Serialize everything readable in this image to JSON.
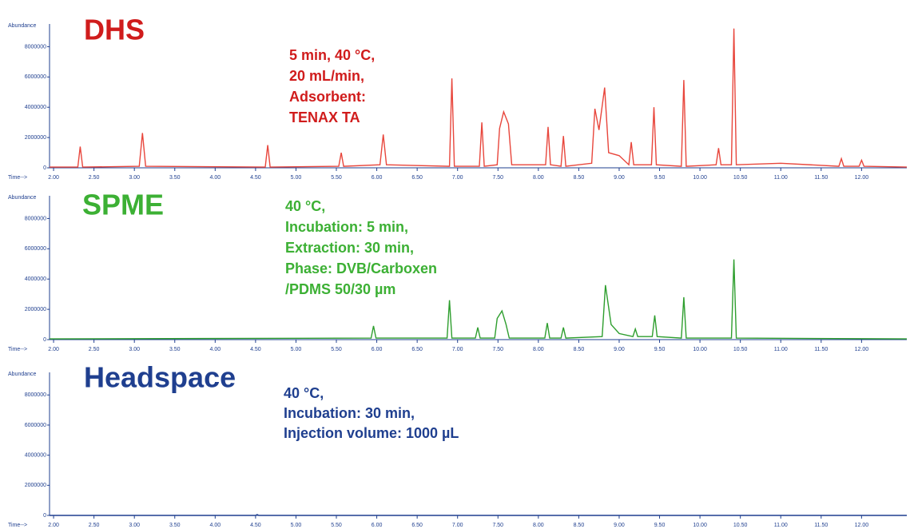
{
  "chart_data": [
    {
      "type": "line",
      "title": "DHS",
      "annotations": [
        "5 min, 40 °C,",
        "20 mL/min,",
        "Adsorbent:",
        "TENAX TA"
      ],
      "y_label": "Abundance",
      "x_label": "Time-->",
      "color": "#e8463c",
      "text_color": "#d01c1c",
      "xlim": [
        1.95,
        12.56
      ],
      "ylim": [
        0,
        9500000
      ],
      "yticks": [
        0,
        2000000,
        4000000,
        6000000,
        8000000
      ],
      "xticks": [
        {
          "value": 2,
          "label": "2.00"
        },
        {
          "value": 2.5,
          "label": "2.50"
        },
        {
          "value": 3,
          "label": "3.00"
        },
        {
          "value": 3.5,
          "label": "3.50"
        },
        {
          "value": 4,
          "label": "4.00"
        },
        {
          "value": 4.5,
          "label": "4.50"
        },
        {
          "value": 5,
          "label": "5.00"
        },
        {
          "value": 5.5,
          "label": "5.50"
        },
        {
          "value": 6,
          "label": "6.00"
        },
        {
          "value": 6.5,
          "label": "6.50"
        },
        {
          "value": 7,
          "label": "7.00"
        },
        {
          "value": 7.5,
          "label": "7.50"
        },
        {
          "value": 8,
          "label": "8.00"
        },
        {
          "value": 8.5,
          "label": "8.50"
        },
        {
          "value": 9,
          "label": "9.00"
        },
        {
          "value": 9.5,
          "label": "9.50"
        },
        {
          "value": 10,
          "label": "10.00"
        },
        {
          "value": 10.5,
          "label": "10.50"
        },
        {
          "value": 11,
          "label": "11.00"
        },
        {
          "value": 11.5,
          "label": "11.50"
        },
        {
          "value": 12,
          "label": "12.00"
        }
      ],
      "x": [
        1.95,
        2.3,
        2.33,
        2.36,
        3.06,
        3.1,
        3.14,
        4.62,
        4.65,
        4.68,
        5.53,
        5.56,
        5.59,
        6.04,
        6.08,
        6.12,
        6.9,
        6.93,
        6.96,
        7.27,
        7.3,
        7.33,
        7.49,
        7.52,
        7.57,
        7.63,
        7.67,
        8.09,
        8.12,
        8.15,
        8.28,
        8.31,
        8.34,
        8.66,
        8.7,
        8.75,
        8.82,
        8.87,
        9.0,
        9.12,
        9.15,
        9.18,
        9.4,
        9.43,
        9.46,
        9.77,
        9.8,
        9.83,
        10.2,
        10.23,
        10.26,
        10.39,
        10.42,
        10.45,
        11.0,
        11.72,
        11.75,
        11.78,
        11.97,
        12.0,
        12.03,
        12.56
      ],
      "values": [
        50000,
        50000,
        1400000,
        50000,
        100000,
        2300000,
        100000,
        50000,
        1500000,
        50000,
        100000,
        1000000,
        100000,
        200000,
        2200000,
        200000,
        100000,
        5900000,
        100000,
        100000,
        3000000,
        100000,
        200000,
        2600000,
        3700000,
        2900000,
        200000,
        200000,
        2700000,
        200000,
        100000,
        2100000,
        100000,
        300000,
        3900000,
        2500000,
        5300000,
        1000000,
        800000,
        200000,
        1700000,
        200000,
        200000,
        4000000,
        200000,
        100000,
        5800000,
        100000,
        200000,
        1300000,
        200000,
        200000,
        9200000,
        200000,
        300000,
        100000,
        600000,
        100000,
        100000,
        500000,
        100000,
        50000
      ]
    },
    {
      "type": "line",
      "title": "SPME",
      "annotations": [
        "40 °C,",
        "Incubation: 5 min,",
        "Extraction: 30 min,",
        "Phase: DVB/Carboxen",
        "/PDMS 50/30 µm"
      ],
      "y_label": "Abundance",
      "x_label": "Time-->",
      "color": "#2e9e2e",
      "text_color": "#3cb034",
      "xlim": [
        1.95,
        12.56
      ],
      "ylim": [
        0,
        9500000
      ],
      "yticks": [
        0,
        2000000,
        4000000,
        6000000,
        8000000
      ],
      "xticks": [
        {
          "value": 2,
          "label": "2.00"
        },
        {
          "value": 2.5,
          "label": "2.50"
        },
        {
          "value": 3,
          "label": "3.00"
        },
        {
          "value": 3.5,
          "label": "3.50"
        },
        {
          "value": 4,
          "label": "4.00"
        },
        {
          "value": 4.5,
          "label": "4.50"
        },
        {
          "value": 5,
          "label": "5.00"
        },
        {
          "value": 5.5,
          "label": "5.50"
        },
        {
          "value": 6,
          "label": "6.00"
        },
        {
          "value": 6.5,
          "label": "6.50"
        },
        {
          "value": 7,
          "label": "7.00"
        },
        {
          "value": 7.5,
          "label": "7.50"
        },
        {
          "value": 8,
          "label": "8.00"
        },
        {
          "value": 8.5,
          "label": "8.50"
        },
        {
          "value": 9,
          "label": "9.00"
        },
        {
          "value": 9.5,
          "label": "9.50"
        },
        {
          "value": 10,
          "label": "10.00"
        },
        {
          "value": 10.5,
          "label": "10.50"
        },
        {
          "value": 11,
          "label": "11.00"
        },
        {
          "value": 11.5,
          "label": "11.50"
        },
        {
          "value": 12,
          "label": "12.00"
        }
      ],
      "x": [
        1.95,
        5.93,
        5.96,
        5.99,
        6.87,
        6.9,
        6.93,
        7.22,
        7.25,
        7.28,
        7.46,
        7.49,
        7.55,
        7.6,
        7.64,
        8.08,
        8.11,
        8.14,
        8.28,
        8.31,
        8.34,
        8.79,
        8.83,
        8.9,
        9.0,
        9.17,
        9.2,
        9.23,
        9.41,
        9.44,
        9.47,
        9.77,
        9.8,
        9.83,
        10.39,
        10.42,
        10.45,
        12.56
      ],
      "values": [
        50000,
        100000,
        900000,
        100000,
        100000,
        2600000,
        100000,
        100000,
        800000,
        100000,
        100000,
        1400000,
        1900000,
        1000000,
        100000,
        100000,
        1100000,
        100000,
        100000,
        800000,
        100000,
        200000,
        3600000,
        1000000,
        400000,
        200000,
        700000,
        200000,
        200000,
        1600000,
        200000,
        100000,
        2800000,
        100000,
        100000,
        5300000,
        100000,
        50000
      ]
    },
    {
      "type": "line",
      "title": "Headspace",
      "annotations": [
        "40 °C,",
        "Incubation: 30 min,",
        "Injection volume: 1000 µL"
      ],
      "y_label": "Abundance",
      "x_label": "Time-->",
      "color": "#1f3f8f",
      "text_color": "#1f3f8f",
      "xlim": [
        1.95,
        12.56
      ],
      "ylim": [
        0,
        9500000
      ],
      "yticks": [
        0,
        2000000,
        4000000,
        6000000,
        8000000
      ],
      "xticks": [
        {
          "value": 2,
          "label": "2.00"
        },
        {
          "value": 2.5,
          "label": "2.50"
        },
        {
          "value": 3,
          "label": "3.00"
        },
        {
          "value": 3.5,
          "label": "3.50"
        },
        {
          "value": 4,
          "label": "4.00"
        },
        {
          "value": 4.5,
          "label": "4.50"
        },
        {
          "value": 5,
          "label": "5.00"
        },
        {
          "value": 5.5,
          "label": "5.50"
        },
        {
          "value": 6,
          "label": "6.00"
        },
        {
          "value": 6.5,
          "label": "6.50"
        },
        {
          "value": 7,
          "label": "7.00"
        },
        {
          "value": 7.5,
          "label": "7.50"
        },
        {
          "value": 8,
          "label": "8.00"
        },
        {
          "value": 8.5,
          "label": "8.50"
        },
        {
          "value": 9,
          "label": "9.00"
        },
        {
          "value": 9.5,
          "label": "9.50"
        },
        {
          "value": 10,
          "label": "10.00"
        },
        {
          "value": 10.5,
          "label": "10.50"
        },
        {
          "value": 11,
          "label": "11.00"
        },
        {
          "value": 11.5,
          "label": "11.50"
        },
        {
          "value": 12,
          "label": "12.00"
        }
      ],
      "x": [
        1.95,
        4.5,
        4.52,
        4.54,
        8.0,
        12.56
      ],
      "values": [
        0,
        0,
        60000,
        0,
        0,
        0
      ]
    }
  ]
}
